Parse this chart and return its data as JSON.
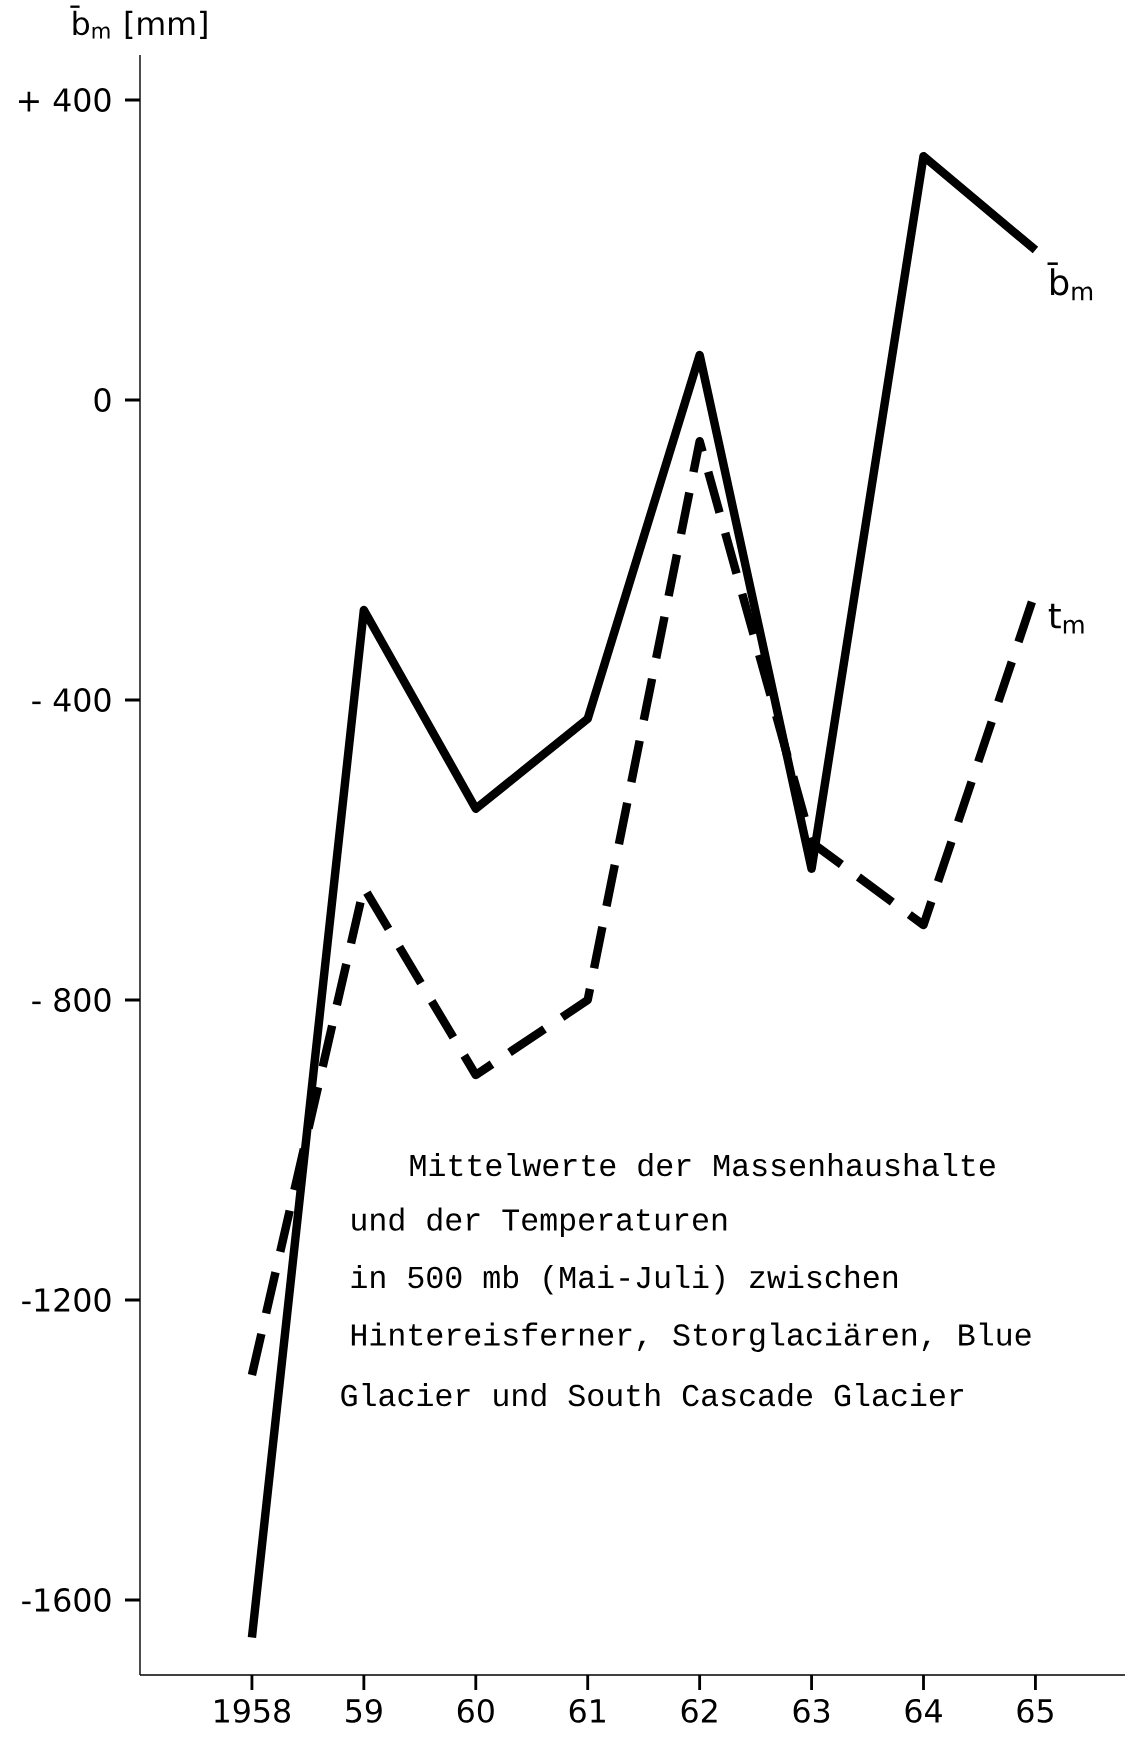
{
  "chart_data": {
    "type": "line",
    "ylabel": "b̄$_{m}$ [mm]",
    "x": [
      1958,
      1959,
      1960,
      1961,
      1962,
      1963,
      1964,
      1965
    ],
    "xlim": [
      1957,
      1965.8
    ],
    "xticks": [
      {
        "value": 1958,
        "label": "1958"
      },
      {
        "value": 1959,
        "label": "59"
      },
      {
        "value": 1960,
        "label": "60"
      },
      {
        "value": 1961,
        "label": "61"
      },
      {
        "value": 1962,
        "label": "62"
      },
      {
        "value": 1963,
        "label": "63"
      },
      {
        "value": 1964,
        "label": "64"
      },
      {
        "value": 1965,
        "label": "65"
      }
    ],
    "ylim": [
      -1700,
      460
    ],
    "yticks": [
      {
        "value": 400,
        "label": "+ 400"
      },
      {
        "value": 0,
        "label": "0"
      },
      {
        "value": -400,
        "label": "- 400"
      },
      {
        "value": -800,
        "label": "- 800"
      },
      {
        "value": -1200,
        "label": "-1200"
      },
      {
        "value": -1600,
        "label": "-1600"
      }
    ],
    "series": [
      {
        "name": "b̄$_{m}$",
        "color": "#000000",
        "line_style": "solid",
        "values": [
          -1650,
          -280,
          -545,
          -425,
          60,
          -625,
          325,
          200
        ]
      },
      {
        "name": "t$_{m}$",
        "color": "#000000",
        "line_style": "dashed",
        "values": [
          -1300,
          -650,
          -900,
          -800,
          -55,
          -590,
          -700,
          -255
        ]
      }
    ],
    "annotations": [
      "Mittelwerte der Massenhaushalte",
      "und der Temperaturen",
      "in 500 mb (Mai-Juli) zwischen",
      "Hintereisferner, Storglaciären, Blue",
      "Glacier und South Cascade Glacier"
    ]
  }
}
